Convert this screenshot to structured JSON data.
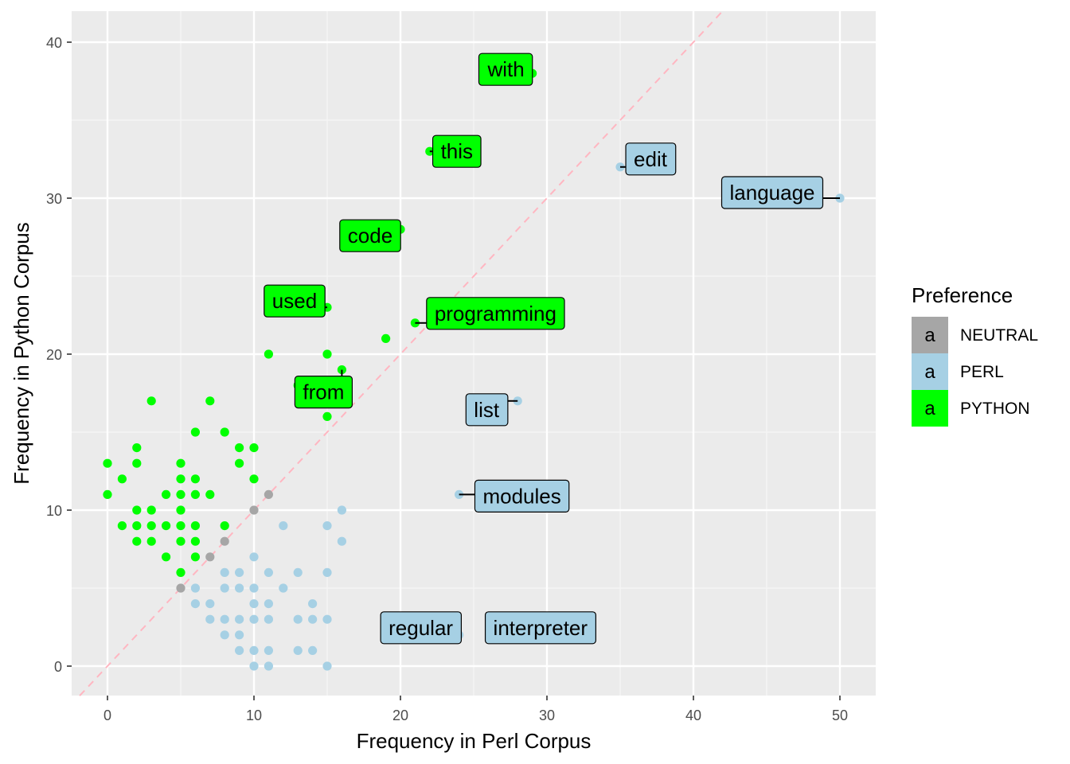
{
  "chart_data": {
    "type": "scatter",
    "title": "",
    "xlabel": "Frequency in Perl Corpus",
    "ylabel": "Frequency in Python Corpus",
    "xlim": [
      -2.5,
      52.5
    ],
    "ylim": [
      -1.9,
      41.9
    ],
    "x_ticks": [
      0,
      10,
      20,
      30,
      40,
      50
    ],
    "y_ticks": [
      0,
      10,
      20,
      30,
      40
    ],
    "grid": true,
    "reference_line": {
      "slope": 1,
      "intercept": 0,
      "style": "dashed",
      "color": "#FFB6C1"
    },
    "legend": {
      "title": "Preference",
      "position": "right",
      "key_letter": "a",
      "entries": [
        {
          "name": "NEUTRAL",
          "color": "#A6A6A6"
        },
        {
          "name": "PERL",
          "color": "#A6D0E4"
        },
        {
          "name": "PYTHON",
          "color": "#00FF00"
        }
      ]
    },
    "series": [
      {
        "name": "NEUTRAL",
        "color": "#A6A6A6",
        "points": [
          [
            5,
            5
          ],
          [
            7,
            7
          ],
          [
            8,
            8
          ],
          [
            10,
            10
          ],
          [
            11,
            11
          ]
        ]
      },
      {
        "name": "PERL",
        "color": "#A6D0E4",
        "points": [
          [
            6,
            5
          ],
          [
            6,
            4
          ],
          [
            7,
            4
          ],
          [
            7,
            3
          ],
          [
            8,
            6
          ],
          [
            8,
            5
          ],
          [
            8,
            3
          ],
          [
            8,
            2
          ],
          [
            9,
            6
          ],
          [
            9,
            5
          ],
          [
            9,
            3
          ],
          [
            9,
            2
          ],
          [
            9,
            1
          ],
          [
            10,
            7
          ],
          [
            10,
            5
          ],
          [
            10,
            4
          ],
          [
            10,
            3
          ],
          [
            10,
            1
          ],
          [
            10,
            0
          ],
          [
            11,
            6
          ],
          [
            11,
            4
          ],
          [
            11,
            3
          ],
          [
            11,
            1
          ],
          [
            11,
            0
          ],
          [
            12,
            9
          ],
          [
            12,
            5
          ],
          [
            13,
            6
          ],
          [
            13,
            3
          ],
          [
            13,
            1
          ],
          [
            14,
            4
          ],
          [
            14,
            3
          ],
          [
            14,
            1
          ],
          [
            15,
            9
          ],
          [
            15,
            6
          ],
          [
            15,
            3
          ],
          [
            15,
            0
          ],
          [
            16,
            10
          ],
          [
            16,
            8
          ],
          [
            24,
            2
          ],
          [
            24,
            11
          ],
          [
            27,
            2
          ],
          [
            28,
            17
          ],
          [
            35,
            32
          ],
          [
            50,
            30
          ]
        ]
      },
      {
        "name": "PYTHON",
        "color": "#00FF00",
        "points": [
          [
            0,
            13
          ],
          [
            0,
            11
          ],
          [
            1,
            12
          ],
          [
            1,
            9
          ],
          [
            2,
            14
          ],
          [
            2,
            13
          ],
          [
            2,
            10
          ],
          [
            2,
            9
          ],
          [
            2,
            8
          ],
          [
            3,
            17
          ],
          [
            3,
            10
          ],
          [
            3,
            9
          ],
          [
            3,
            8
          ],
          [
            4,
            11
          ],
          [
            4,
            9
          ],
          [
            4,
            7
          ],
          [
            5,
            13
          ],
          [
            5,
            12
          ],
          [
            5,
            11
          ],
          [
            5,
            10
          ],
          [
            5,
            9
          ],
          [
            5,
            8
          ],
          [
            5,
            6
          ],
          [
            6,
            15
          ],
          [
            6,
            12
          ],
          [
            6,
            11
          ],
          [
            6,
            9
          ],
          [
            6,
            8
          ],
          [
            6,
            7
          ],
          [
            7,
            17
          ],
          [
            7,
            11
          ],
          [
            8,
            15
          ],
          [
            8,
            9
          ],
          [
            9,
            14
          ],
          [
            9,
            13
          ],
          [
            10,
            14
          ],
          [
            10,
            12
          ],
          [
            11,
            20
          ],
          [
            13,
            18
          ],
          [
            15,
            23
          ],
          [
            15,
            20
          ],
          [
            15,
            18
          ],
          [
            15,
            16
          ],
          [
            16,
            19
          ],
          [
            19,
            21
          ],
          [
            20,
            28
          ],
          [
            21,
            22
          ],
          [
            22,
            33
          ],
          [
            29,
            38
          ]
        ]
      }
    ],
    "annotations": [
      {
        "text": "with",
        "x": 29,
        "y": 38,
        "series": "PYTHON"
      },
      {
        "text": "this",
        "x": 22,
        "y": 33,
        "series": "PYTHON"
      },
      {
        "text": "edit",
        "x": 35,
        "y": 32,
        "series": "PERL"
      },
      {
        "text": "language",
        "x": 50,
        "y": 30,
        "series": "PERL"
      },
      {
        "text": "code",
        "x": 20,
        "y": 28,
        "series": "PYTHON"
      },
      {
        "text": "used",
        "x": 15,
        "y": 23,
        "series": "PYTHON"
      },
      {
        "text": "programming",
        "x": 21,
        "y": 22,
        "series": "PYTHON"
      },
      {
        "text": "from",
        "x": 16,
        "y": 19,
        "series": "PYTHON"
      },
      {
        "text": "list",
        "x": 28,
        "y": 17,
        "series": "PERL"
      },
      {
        "text": "modules",
        "x": 24,
        "y": 11,
        "series": "PERL"
      },
      {
        "text": "regular",
        "x": 24,
        "y": 2,
        "series": "PERL"
      },
      {
        "text": "interpreter",
        "x": 27,
        "y": 2,
        "series": "PERL"
      }
    ]
  }
}
